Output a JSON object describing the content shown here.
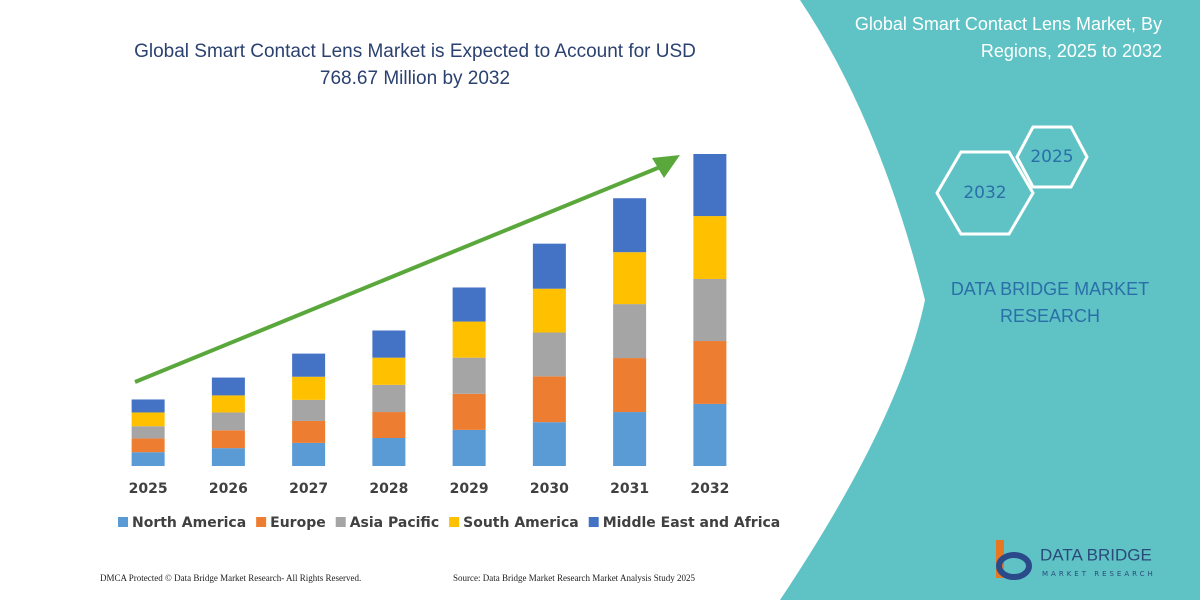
{
  "chart_data": {
    "type": "stacked_bar",
    "title": "Global Smart Contact Lens Market is Expected to Account for USD 768.67 Million by 2032",
    "categories": [
      "2025",
      "2026",
      "2027",
      "2028",
      "2029",
      "2030",
      "2031",
      "2032"
    ],
    "series": [
      {
        "name": "North America",
        "color": "#5b9bd5",
        "values": [
          34,
          44,
          57,
          69,
          89,
          108,
          133,
          153
        ]
      },
      {
        "name": "Europe",
        "color": "#ed7d31",
        "values": [
          34,
          44,
          54,
          64,
          89,
          113,
          133,
          155
        ]
      },
      {
        "name": "Asia Pacific",
        "color": "#a5a5a5",
        "values": [
          30,
          44,
          52,
          67,
          89,
          108,
          133,
          153
        ]
      },
      {
        "name": "South America",
        "color": "#ffc000",
        "values": [
          34,
          42,
          57,
          67,
          89,
          108,
          128,
          155
        ]
      },
      {
        "name": "Middle East and Africa",
        "color": "#4472c4",
        "values": [
          32,
          44,
          57,
          67,
          84,
          111,
          133,
          153
        ]
      }
    ]
  },
  "side_panel": {
    "title": "Global Smart Contact Lens Market, By Regions, 2025 to 2032",
    "hexagons": [
      "2025",
      "2032"
    ],
    "brand": "DATA BRIDGE MARKET RESEARCH"
  },
  "logo": {
    "name": "DATA BRIDGE",
    "tagline": "MARKET RESEARCH"
  },
  "footer": {
    "left": "DMCA Protected © Data Bridge Market Research-  All Rights Reserved.",
    "right": "Source: Data Bridge Market Research  Market Analysis Study 2025"
  }
}
